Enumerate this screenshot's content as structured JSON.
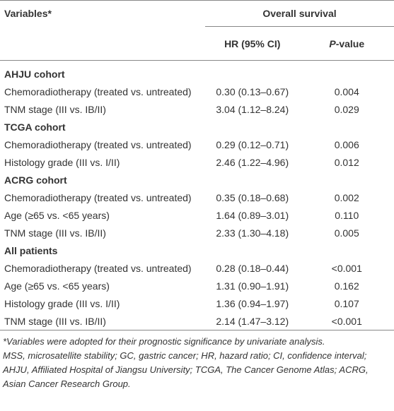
{
  "table": {
    "header": {
      "variables": "Variables*",
      "group": "Overall survival",
      "hr": "HR (95% CI)",
      "p": "P-value"
    },
    "sections": [
      {
        "title": "AHJU cohort",
        "rows": [
          [
            "Chemoradiotherapy (treated vs. untreated)",
            "0.30 (0.13–0.67)",
            "0.004"
          ],
          [
            "TNM stage (III vs. IB/II)",
            "3.04 (1.12–8.24)",
            "0.029"
          ]
        ]
      },
      {
        "title": "TCGA cohort",
        "rows": [
          [
            "Chemoradiotherapy (treated vs. untreated)",
            "0.29 (0.12–0.71)",
            "0.006"
          ],
          [
            "Histology grade (III vs. I/II)",
            "2.46 (1.22–4.96)",
            "0.012"
          ]
        ]
      },
      {
        "title": "ACRG cohort",
        "rows": [
          [
            "Chemoradiotherapy (treated vs. untreated)",
            "0.35 (0.18–0.68)",
            "0.002"
          ],
          [
            "Age (≥65 vs. <65 years)",
            "1.64 (0.89–3.01)",
            "0.110"
          ],
          [
            "TNM stage (III vs. IB/II)",
            "2.33 (1.30–4.18)",
            "0.005"
          ]
        ]
      },
      {
        "title": "All patients",
        "rows": [
          [
            "Chemoradiotherapy (treated vs. untreated)",
            "0.28 (0.18–0.44)",
            "<0.001"
          ],
          [
            "Age (≥65 vs. <65 years)",
            "1.31 (0.90–1.91)",
            "0.162"
          ],
          [
            "Histology grade (III vs. I/II)",
            "1.36 (0.94–1.97)",
            "0.107"
          ],
          [
            "TNM stage (III vs. IB/II)",
            "2.14 (1.47–3.12)",
            "<0.001"
          ]
        ]
      }
    ],
    "footnotes": [
      "*Variables were adopted for their prognostic significance by univariate analysis.",
      "MSS, microsatellite stability; GC, gastric cancer; HR, hazard ratio; CI, confidence interval; AHJU, Affiliated Hospital of Jiangsu University; TCGA, The Cancer Genome Atlas; ACRG, Asian Cancer Research Group."
    ]
  }
}
